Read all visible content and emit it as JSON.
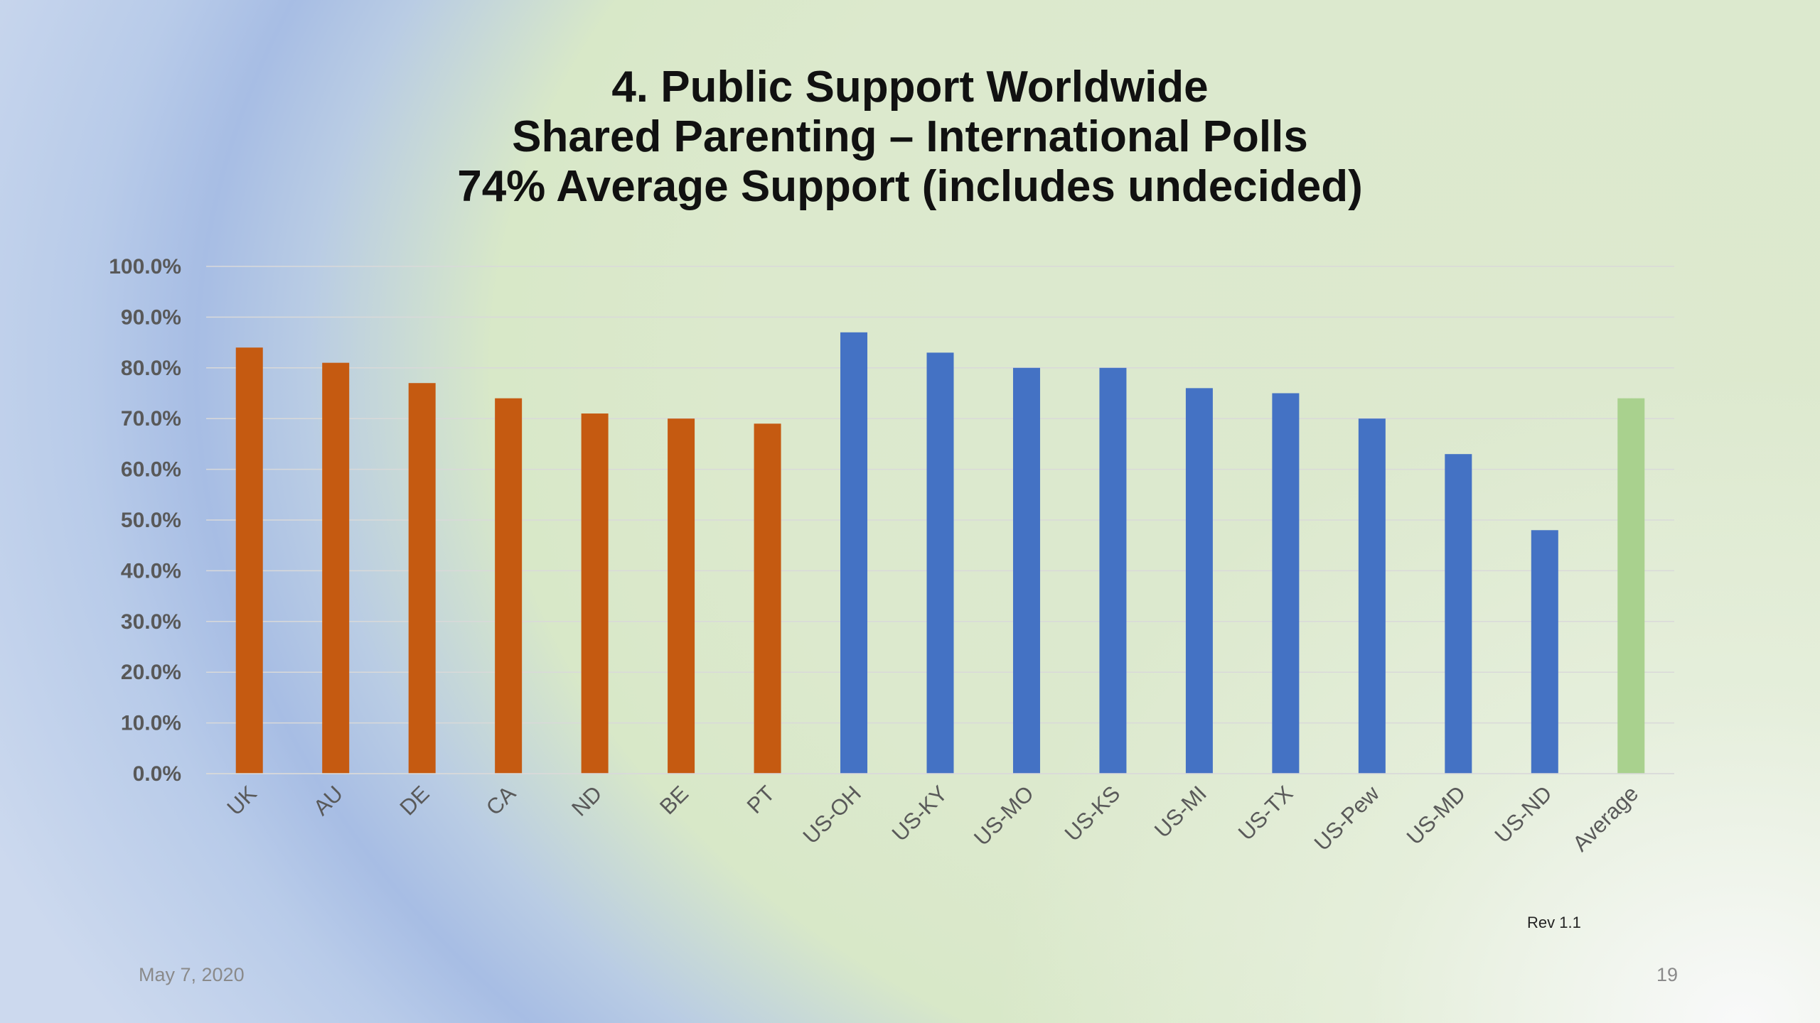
{
  "chart_data": {
    "type": "bar",
    "title_lines": [
      "4. Public Support Worldwide",
      "Shared Parenting – International Polls",
      "74% Average Support (includes undecided)"
    ],
    "categories": [
      "UK",
      "AU",
      "DE",
      "CA",
      "ND",
      "BE",
      "PT",
      "US-OH",
      "US-KY",
      "US-MO",
      "US-KS",
      "US-MI",
      "US-TX",
      "US-Pew",
      "US-MD",
      "US-ND",
      "Average"
    ],
    "values": [
      84,
      81,
      77,
      74,
      71,
      70,
      69,
      87,
      83,
      80,
      80,
      76,
      75,
      70,
      63,
      48,
      74
    ],
    "bar_colors": [
      "#c55a11",
      "#c55a11",
      "#c55a11",
      "#c55a11",
      "#c55a11",
      "#c55a11",
      "#c55a11",
      "#4472c4",
      "#4472c4",
      "#4472c4",
      "#4472c4",
      "#4472c4",
      "#4472c4",
      "#4472c4",
      "#4472c4",
      "#4472c4",
      "#a9d18e"
    ],
    "ylim": [
      0,
      100
    ],
    "yticks": [
      "0.0%",
      "10.0%",
      "20.0%",
      "30.0%",
      "40.0%",
      "50.0%",
      "60.0%",
      "70.0%",
      "80.0%",
      "90.0%",
      "100.0%"
    ],
    "grid": true,
    "legend": "none"
  },
  "annotation": "Rev 1.1",
  "footer": {
    "date": "May 7, 2020",
    "page": "19"
  },
  "colors": {
    "international": "#c55a11",
    "us": "#4472c4",
    "average": "#a9d18e"
  }
}
